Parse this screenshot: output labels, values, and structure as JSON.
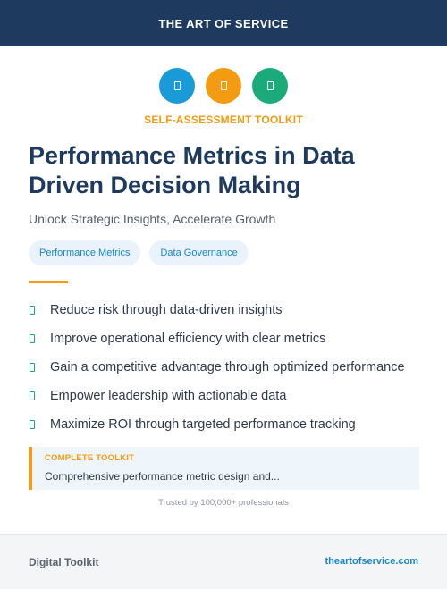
{
  "header": {
    "brand": "THE ART OF SERVICE"
  },
  "icons": [
    {
      "name": "toolkit-icon",
      "color": "#1a9bd7"
    },
    {
      "name": "toolkit-icon",
      "color": "#f39c12"
    },
    {
      "name": "toolkit-icon",
      "color": "#1bab7a"
    }
  ],
  "kicker": "SELF-ASSESSMENT TOOLKIT",
  "title": "Performance Metrics in Data Driven Decision Making",
  "subtitle": "Unlock Strategic Insights, Accelerate Growth",
  "tags": [
    "Performance Metrics",
    "Data Governance"
  ],
  "benefits": [
    "Reduce risk through data-driven insights",
    "Improve operational efficiency with clear metrics",
    "Gain a competitive advantage through optimized performance",
    "Empower leadership with actionable data",
    "Maximize ROI through targeted performance tracking"
  ],
  "callout": {
    "label": "COMPLETE TOOLKIT",
    "text": "Comprehensive performance metric design and..."
  },
  "trusted": "Trusted by 100,000+ professionals",
  "footer": {
    "left": "Digital Toolkit",
    "right": "theartofservice.com"
  },
  "colors": {
    "navy": "#1e3a5f",
    "orange": "#f39c12",
    "blue": "#1a9bd7",
    "green": "#1bab7a"
  }
}
